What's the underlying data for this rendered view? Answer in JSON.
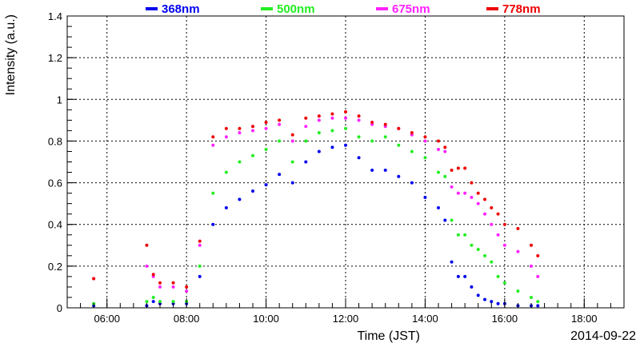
{
  "chart_data": {
    "type": "scatter",
    "title": "",
    "xlabel": "Time (JST)",
    "ylabel": "Intensity (a.u.)",
    "date_label": "2014-09-22",
    "xlim": [
      "05:00",
      "19:00"
    ],
    "ylim": [
      0,
      1.4
    ],
    "x_ticks": [
      "06:00",
      "08:00",
      "10:00",
      "12:00",
      "14:00",
      "16:00",
      "18:00"
    ],
    "y_ticks": [
      "0",
      "0.2",
      "0.4",
      "0.6",
      "0.8",
      "1",
      "1.2",
      "1.4"
    ],
    "grid": true,
    "legend_position": "top",
    "x": [
      "05:40",
      "07:00",
      "07:10",
      "07:20",
      "07:40",
      "08:00",
      "08:20",
      "08:40",
      "09:00",
      "09:20",
      "09:40",
      "10:00",
      "10:20",
      "10:40",
      "11:00",
      "11:20",
      "11:40",
      "12:00",
      "12:20",
      "12:40",
      "13:00",
      "13:20",
      "13:40",
      "14:00",
      "14:20",
      "14:30",
      "14:40",
      "14:50",
      "15:00",
      "15:10",
      "15:20",
      "15:30",
      "15:40",
      "15:50",
      "16:00",
      "16:20",
      "16:40",
      "16:50"
    ],
    "series": [
      {
        "name": "368nm",
        "color": "#0000ee",
        "values": [
          0.01,
          0.01,
          0.03,
          0.02,
          0.02,
          0.02,
          0.15,
          0.4,
          0.48,
          0.52,
          0.56,
          0.59,
          0.64,
          0.6,
          0.7,
          0.75,
          0.77,
          0.78,
          0.72,
          0.66,
          0.66,
          0.63,
          0.6,
          0.53,
          0.48,
          0.42,
          0.22,
          0.15,
          0.15,
          0.1,
          0.06,
          0.04,
          0.03,
          0.02,
          0.02,
          0.01,
          0.01,
          0.01
        ]
      },
      {
        "name": "500nm",
        "color": "#22ee22",
        "values": [
          0.02,
          0.03,
          0.05,
          0.03,
          0.03,
          0.03,
          0.2,
          0.55,
          0.65,
          0.7,
          0.73,
          0.76,
          0.8,
          0.7,
          0.8,
          0.84,
          0.85,
          0.86,
          0.82,
          0.8,
          0.82,
          0.78,
          0.75,
          0.72,
          0.65,
          0.63,
          0.42,
          0.35,
          0.35,
          0.3,
          0.28,
          0.25,
          0.22,
          0.15,
          0.12,
          0.08,
          0.05,
          0.03
        ]
      },
      {
        "name": "675nm",
        "color": "#ff22ff",
        "values": [
          0.14,
          0.2,
          0.15,
          0.1,
          0.1,
          0.08,
          0.3,
          0.78,
          0.82,
          0.84,
          0.85,
          0.86,
          0.88,
          0.8,
          0.87,
          0.9,
          0.91,
          0.91,
          0.9,
          0.88,
          0.87,
          0.86,
          0.83,
          0.8,
          0.76,
          0.75,
          0.58,
          0.55,
          0.55,
          0.53,
          0.5,
          0.45,
          0.4,
          0.35,
          0.3,
          0.27,
          0.2,
          0.15
        ]
      },
      {
        "name": "778nm",
        "color": "#ee0000",
        "values": [
          0.14,
          0.3,
          0.16,
          0.12,
          0.12,
          0.1,
          0.32,
          0.82,
          0.86,
          0.86,
          0.87,
          0.89,
          0.9,
          0.83,
          0.91,
          0.92,
          0.93,
          0.94,
          0.92,
          0.89,
          0.88,
          0.86,
          0.84,
          0.82,
          0.8,
          0.77,
          0.66,
          0.67,
          0.67,
          0.6,
          0.55,
          0.52,
          0.48,
          0.45,
          0.4,
          0.38,
          0.3,
          0.25
        ]
      }
    ]
  }
}
